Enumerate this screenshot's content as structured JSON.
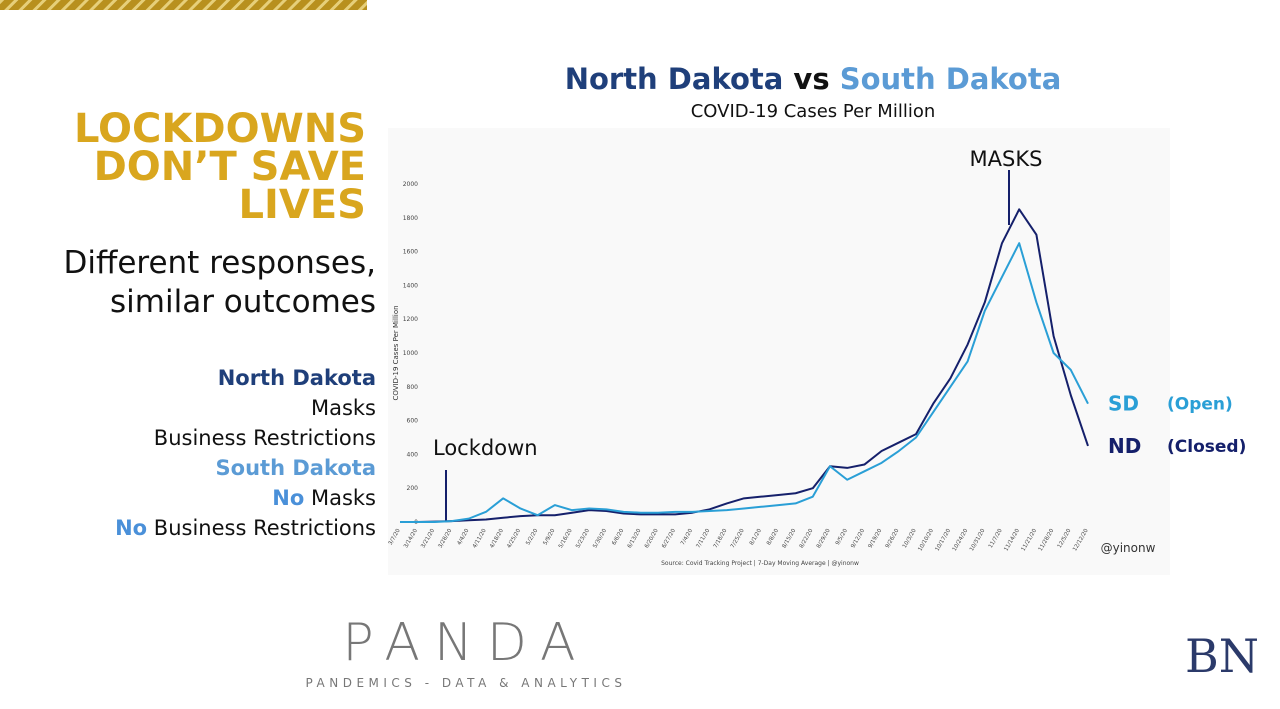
{
  "headline": [
    "LOCKDOWNS",
    "DON’T SAVE",
    "LIVES"
  ],
  "subheading": [
    "Different responses,",
    "similar outcomes"
  ],
  "comparison": {
    "north_dakota": {
      "name": "North Dakota",
      "items": [
        "Masks",
        "Business Restrictions"
      ]
    },
    "south_dakota": {
      "name": "South Dakota",
      "items": [
        {
          "prefix": "No",
          "text": "Masks"
        },
        {
          "prefix": "No",
          "text": "Business Restrictions"
        }
      ]
    }
  },
  "footer": {
    "logo": "PANDA",
    "tagline": "PANDEMICS - DATA & ANALYTICS",
    "corner_logo": "BN"
  },
  "chart_data": {
    "type": "line",
    "title": [
      "North Dakota",
      "vs",
      "South Dakota"
    ],
    "subtitle": "COVID-19 Cases Per Million",
    "y_label": "COVID-19 Cases Per Million",
    "source": "Source: Covid Tracking Project | 7-Day Moving Average | @yinonw",
    "watermark": "@yinonw",
    "annotations": [
      "Lockdown",
      "MASKS"
    ],
    "categories": [
      "3/7/20",
      "3/14/20",
      "3/21/20",
      "3/28/20",
      "4/4/20",
      "4/11/20",
      "4/18/20",
      "4/25/20",
      "5/2/20",
      "5/9/20",
      "5/16/20",
      "5/23/20",
      "5/30/20",
      "6/6/20",
      "6/13/20",
      "6/20/20",
      "6/27/20",
      "7/4/20",
      "7/11/20",
      "7/18/20",
      "7/25/20",
      "8/1/20",
      "8/8/20",
      "8/15/20",
      "8/22/20",
      "8/29/20",
      "9/5/20",
      "9/12/20",
      "9/19/20",
      "9/26/20",
      "10/3/20",
      "10/10/20",
      "10/17/20",
      "10/24/20",
      "10/31/20",
      "11/7/20",
      "11/14/20",
      "11/21/20",
      "11/28/20",
      "12/5/20",
      "12/12/20"
    ],
    "series": [
      {
        "name": "ND",
        "label": "(Closed)",
        "color": "#15206b",
        "values": [
          0,
          0,
          2,
          5,
          10,
          15,
          25,
          35,
          40,
          40,
          55,
          70,
          65,
          50,
          45,
          45,
          45,
          55,
          75,
          110,
          140,
          150,
          160,
          170,
          200,
          330,
          320,
          340,
          420,
          470,
          520,
          700,
          850,
          1050,
          1300,
          1650,
          1850,
          1700,
          1100,
          750,
          450
        ]
      },
      {
        "name": "SD",
        "label": "(Open)",
        "color": "#2a9fd6",
        "values": [
          0,
          0,
          0,
          5,
          20,
          60,
          140,
          80,
          40,
          100,
          70,
          80,
          75,
          60,
          55,
          55,
          60,
          60,
          65,
          70,
          80,
          90,
          100,
          110,
          150,
          330,
          250,
          300,
          350,
          420,
          500,
          650,
          800,
          950,
          1250,
          1450,
          1650,
          1300,
          1000,
          900,
          700
        ]
      }
    ],
    "ylim": [
      0,
      2000
    ],
    "yticks": [
      0,
      200,
      400,
      600,
      800,
      1000,
      1200,
      1400,
      1600,
      1800,
      2000
    ],
    "grid": false
  }
}
